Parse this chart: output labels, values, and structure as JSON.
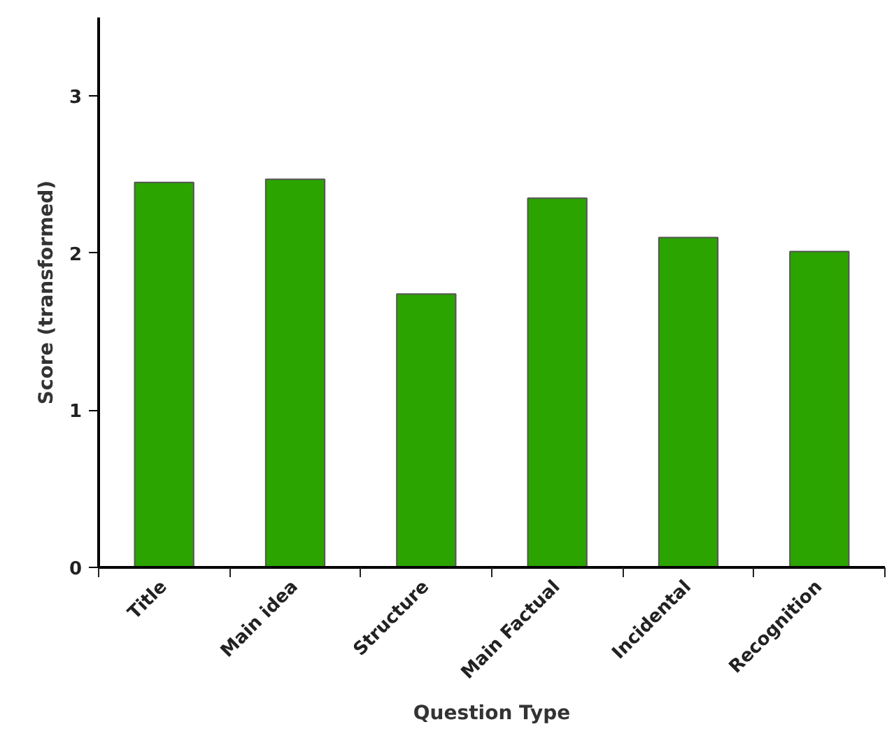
{
  "chart_data": {
    "type": "bar",
    "xlabel": "Question Type",
    "ylabel": "Score (transformed)",
    "categories": [
      "Title",
      "Main idea",
      "Structure",
      "Main Factual",
      "Incidental",
      "Recognition"
    ],
    "values": [
      2.45,
      2.47,
      1.74,
      2.35,
      2.1,
      2.01
    ],
    "color": "#2ca400",
    "ylim": [
      0,
      3.5
    ],
    "yticks": [
      0,
      1,
      2,
      3
    ],
    "grid": false
  }
}
